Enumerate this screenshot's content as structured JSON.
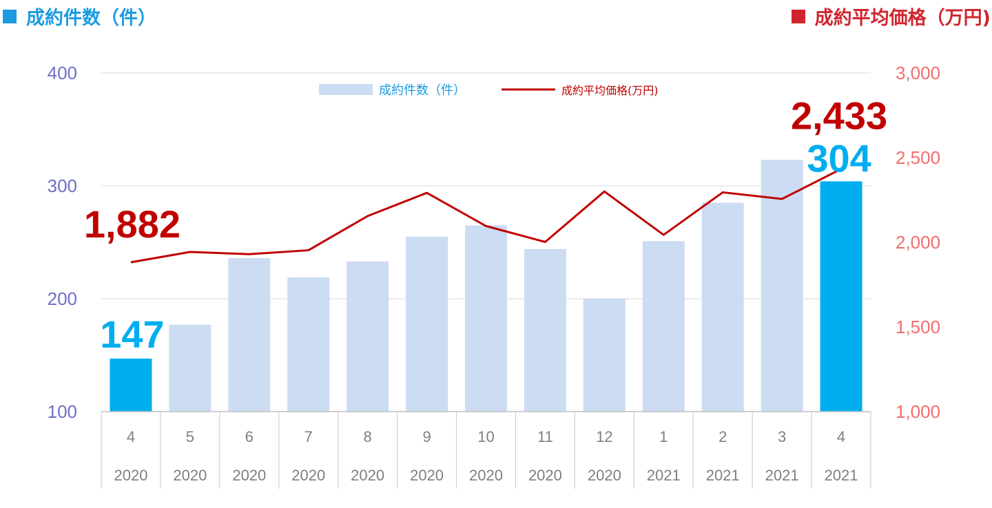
{
  "titles": {
    "left": "成約件数（件）",
    "right": "成約平均価格（万円)"
  },
  "colors": {
    "left_title": "#1A9BE0",
    "right_title": "#D0252E",
    "bar": "#CCDCF2",
    "bar_highlight": "#00AEEF",
    "line": "#C00000",
    "left_ticks": "#6E6EC8",
    "right_ticks": "#F26D6D"
  },
  "chart_data": {
    "type": "bar",
    "categories": [
      "4",
      "5",
      "6",
      "7",
      "8",
      "9",
      "10",
      "11",
      "12",
      "1",
      "2",
      "3",
      "4"
    ],
    "years": [
      "2020",
      "2020",
      "2020",
      "2020",
      "2020",
      "2020",
      "2020",
      "2020",
      "2020",
      "2021",
      "2021",
      "2021",
      "2021"
    ],
    "series": [
      {
        "name": "成約件数（件）",
        "type": "bar",
        "axis": "left",
        "values": [
          147,
          177,
          236,
          219,
          233,
          255,
          265,
          244,
          200,
          251,
          285,
          323,
          304
        ]
      },
      {
        "name": "成約平均価格(万円)",
        "type": "line",
        "axis": "right",
        "values": [
          1882,
          1943,
          1930,
          1953,
          2155,
          2292,
          2096,
          2002,
          2300,
          2044,
          2295,
          2256,
          2433
        ]
      }
    ],
    "highlighted_indices": [
      0,
      12
    ],
    "left_axis": {
      "ylim": [
        100,
        400
      ],
      "ticks": [
        "100",
        "200",
        "300",
        "400"
      ]
    },
    "right_axis": {
      "ylim": [
        1000,
        3000
      ],
      "ticks": [
        "1,000",
        "1,500",
        "2,000",
        "2,500",
        "3,000"
      ]
    },
    "grid": true,
    "legend_position": "top-center",
    "annotations": [
      {
        "text": "1,882",
        "series": "line",
        "index": 0
      },
      {
        "text": "147",
        "series": "bar",
        "index": 0
      },
      {
        "text": "2,433",
        "series": "line",
        "index": 12
      },
      {
        "text": "304",
        "series": "bar",
        "index": 12
      }
    ]
  }
}
